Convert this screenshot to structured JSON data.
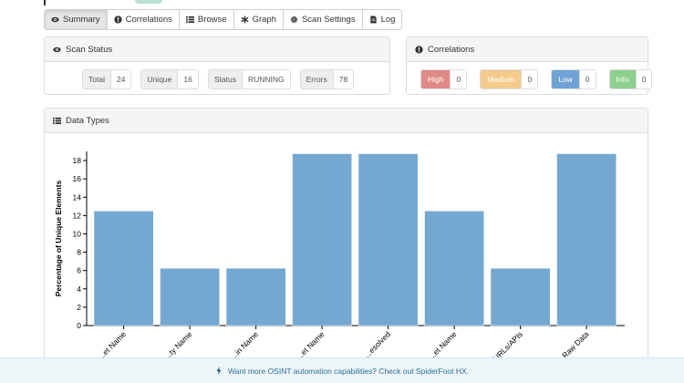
{
  "tabs": [
    {
      "label": "Summary",
      "icon": "eye-icon",
      "active": true
    },
    {
      "label": "Correlations",
      "icon": "exclamation-circle-icon",
      "active": false
    },
    {
      "label": "Browse",
      "icon": "list-icon",
      "active": false
    },
    {
      "label": "Graph",
      "icon": "asterisk-icon",
      "active": false
    },
    {
      "label": "Scan Settings",
      "icon": "gear-icon",
      "active": false
    },
    {
      "label": "Log",
      "icon": "document-icon",
      "active": false
    }
  ],
  "scan_status": {
    "title": "Scan Status",
    "stats": [
      {
        "label": "Total",
        "value": "24"
      },
      {
        "label": "Unique",
        "value": "16"
      },
      {
        "label": "Status",
        "value": "RUNNING"
      },
      {
        "label": "Errors",
        "value": "78"
      }
    ]
  },
  "correlations": {
    "title": "Correlations",
    "items": [
      {
        "label": "High",
        "value": "0",
        "color": "#d9534f"
      },
      {
        "label": "Medium",
        "value": "0",
        "color": "#f0ad4e"
      },
      {
        "label": "Low",
        "value": "0",
        "color": "#428bca"
      },
      {
        "label": "Info",
        "value": "0",
        "color": "#5cb85c"
      }
    ]
  },
  "data_types": {
    "title": "Data Types"
  },
  "chart_data": {
    "type": "bar",
    "ylabel": "Percentage of Unique Elements",
    "ylim": [
      0,
      19
    ],
    "yticks": [
      0,
      2,
      4,
      6,
      8,
      10,
      12,
      14,
      16,
      18
    ],
    "categories": [
      "...et Name",
      "...ty Name",
      "...in Name",
      "...et Name",
      "...esolved",
      "...et Name",
      "...URLs/APIs",
      "Raw Data"
    ],
    "values": [
      12.5,
      6.25,
      6.25,
      18.75,
      18.75,
      12.5,
      6.25,
      18.75
    ],
    "bar_color": "#75a8d0",
    "grid": false
  },
  "footer": {
    "text": "Want more OSINT automation capabilities? Check out SpiderFoot HX.",
    "icon": "bolt-icon"
  }
}
